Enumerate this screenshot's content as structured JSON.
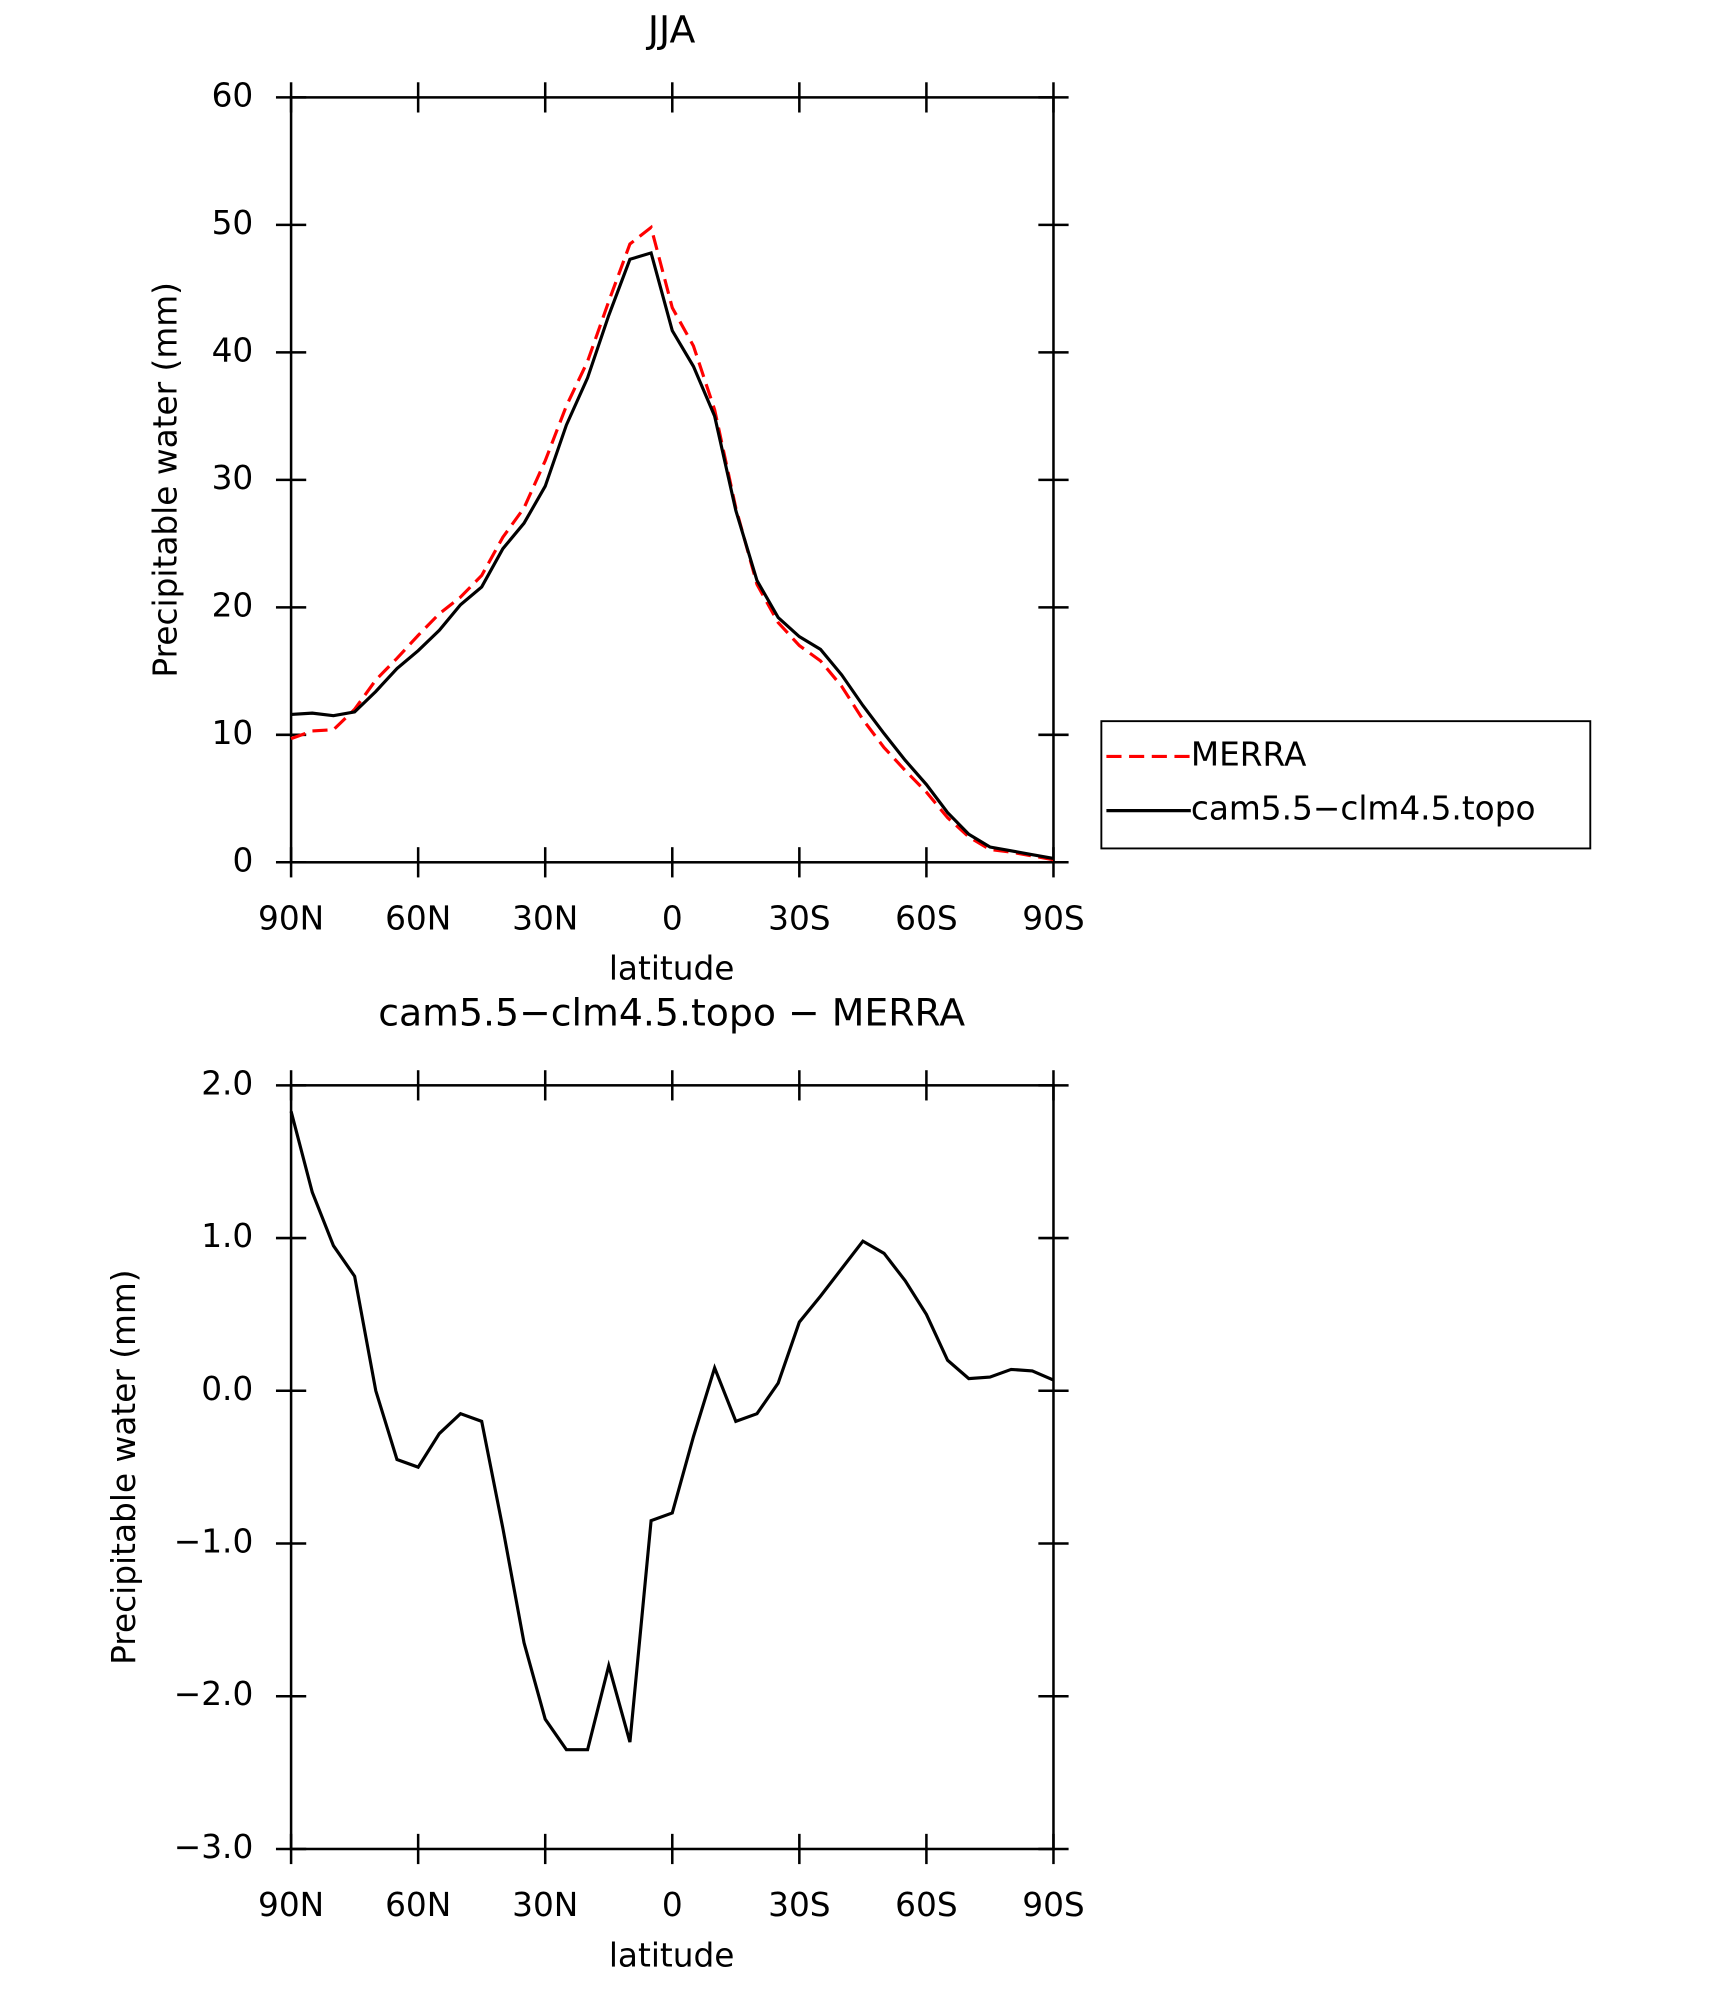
{
  "chart_data": [
    {
      "type": "line",
      "title": "JJA",
      "xlabel": "latitude",
      "ylabel": "Precipitable water (mm)",
      "x": [
        90,
        85,
        80,
        75,
        70,
        65,
        60,
        55,
        50,
        45,
        40,
        35,
        30,
        25,
        20,
        15,
        10,
        5,
        0,
        -5,
        -10,
        -15,
        -20,
        -25,
        -30,
        -35,
        -40,
        -45,
        -50,
        -55,
        -60,
        -65,
        -70,
        -75,
        -80,
        -85,
        -90
      ],
      "xlim": [
        90,
        -90
      ],
      "xticks": [
        {
          "value": 90,
          "label": "90N"
        },
        {
          "value": 60,
          "label": "60N"
        },
        {
          "value": 30,
          "label": "30N"
        },
        0,
        {
          "value": -30,
          "label": "30S"
        },
        {
          "value": -60,
          "label": "60S"
        },
        {
          "value": -90,
          "label": "90S"
        }
      ],
      "ylim": [
        0,
        60
      ],
      "yticks": [
        0,
        10,
        20,
        30,
        40,
        50,
        60
      ],
      "legend": "right",
      "series": [
        {
          "name": "MERRA",
          "color": "#ff0000",
          "dash": true,
          "values": [
            9.7,
            10.3,
            10.4,
            12,
            14.3,
            16,
            17.8,
            19.5,
            20.8,
            22.5,
            25.5,
            27.8,
            31.5,
            35.8,
            39.3,
            44,
            48.5,
            49.8,
            43.5,
            40.5,
            35.5,
            27.8,
            21.8,
            18.8,
            17,
            15.8,
            13.8,
            11.2,
            9,
            7.2,
            5.5,
            3.5,
            2,
            1,
            0.8,
            0.5,
            0.2
          ]
        },
        {
          "name": "cam5.5−clm4.5.topo",
          "color": "#000000",
          "dash": false,
          "values": [
            11.6,
            11.7,
            11.5,
            11.8,
            13.4,
            15.2,
            16.6,
            18.2,
            20.2,
            21.6,
            24.6,
            26.6,
            29.5,
            34.3,
            38,
            42.9,
            47.3,
            47.8,
            41.7,
            38.9,
            35,
            27.6,
            22.1,
            19.2,
            17.7,
            16.7,
            14.7,
            12.3,
            10.1,
            8,
            6.1,
            3.9,
            2.2,
            1.2,
            0.9,
            0.6,
            0.3
          ]
        }
      ]
    },
    {
      "type": "line",
      "title": "cam5.5−clm4.5.topo − MERRA",
      "xlabel": "latitude",
      "ylabel": "Precipitable water (mm)",
      "x": [
        90,
        85,
        80,
        75,
        70,
        65,
        60,
        55,
        50,
        45,
        40,
        35,
        30,
        25,
        20,
        15,
        10,
        5,
        0,
        -5,
        -10,
        -15,
        -20,
        -25,
        -30,
        -35,
        -40,
        -45,
        -50,
        -55,
        -60,
        -65,
        -70,
        -75,
        -80,
        -85,
        -90
      ],
      "xlim": [
        90,
        -90
      ],
      "xticks": [
        {
          "value": 90,
          "label": "90N"
        },
        {
          "value": 60,
          "label": "60N"
        },
        {
          "value": 30,
          "label": "30N"
        },
        0,
        {
          "value": -30,
          "label": "30S"
        },
        {
          "value": -60,
          "label": "60S"
        },
        {
          "value": -90,
          "label": "90S"
        }
      ],
      "ylim": [
        -3,
        2
      ],
      "yticks": [
        {
          "value": -3,
          "label": "−3.0"
        },
        {
          "value": -2,
          "label": "−2.0"
        },
        {
          "value": -1,
          "label": "−1.0"
        },
        {
          "value": 0,
          "label": "0.0"
        },
        {
          "value": 1,
          "label": "1.0"
        },
        {
          "value": 2,
          "label": "2.0"
        }
      ],
      "color": "#000000",
      "values": [
        1.83,
        1.3,
        0.95,
        0.75,
        0,
        -0.45,
        -0.5,
        -0.28,
        -0.15,
        -0.2,
        -0.9,
        -1.65,
        -2.15,
        -2.35,
        -2.35,
        -1.8,
        -2.3,
        -0.85,
        -0.8,
        -0.3,
        0.15,
        -0.2,
        -0.15,
        0.05,
        0.45,
        0.62,
        0.8,
        0.98,
        0.9,
        0.72,
        0.5,
        0.2,
        0.08,
        0.09,
        0.14,
        0.13,
        0.07
      ]
    }
  ]
}
